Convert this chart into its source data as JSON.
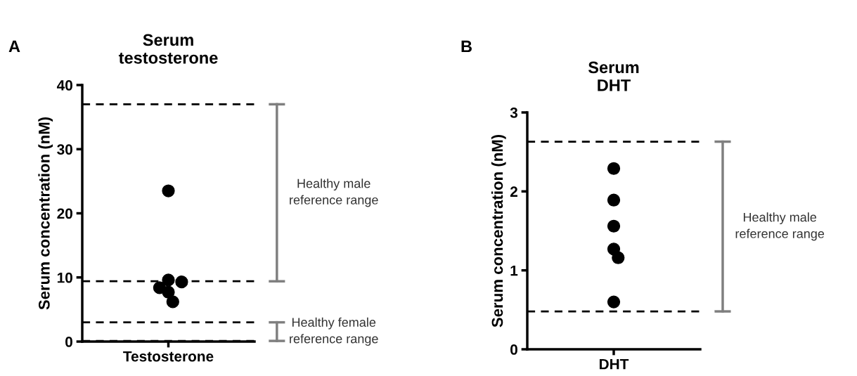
{
  "chart_data": [
    {
      "type": "scatter",
      "title": "Serum\ntestosterone",
      "ylabel": "Serum concentration (nM)",
      "categories": [
        "Testosterone"
      ],
      "series": [
        {
          "color": "#000000",
          "x": [
            "Testosterone",
            "Testosterone",
            "Testosterone",
            "Testosterone",
            "Testosterone",
            "Testosterone"
          ],
          "values": [
            23.5,
            9.6,
            9.3,
            8.4,
            7.7,
            6.2
          ]
        }
      ],
      "ylim": [
        0,
        40
      ],
      "yticks": [
        0,
        10,
        20,
        30,
        40
      ],
      "marker": "circle",
      "ref_lines": [
        {
          "axis": "y",
          "value": 37.0,
          "color": "#000000",
          "line_style": "dashed"
        },
        {
          "axis": "y",
          "value": 9.4,
          "color": "#000000",
          "line_style": "dashed"
        },
        {
          "axis": "y",
          "value": 3.0,
          "color": "#000000",
          "line_style": "dashed"
        },
        {
          "axis": "y",
          "value": 0.1,
          "color": "#000000",
          "line_style": "dashed"
        }
      ],
      "annotations": [
        "A",
        "Healthy male\nreference range",
        "Healthy female\nreference range"
      ]
    },
    {
      "type": "scatter",
      "title": "Serum\nDHT",
      "ylabel": "Serum concentration (nM)",
      "categories": [
        "DHT"
      ],
      "series": [
        {
          "color": "#000000",
          "x": [
            "DHT",
            "DHT",
            "DHT",
            "DHT",
            "DHT",
            "DHT"
          ],
          "values": [
            2.29,
            1.89,
            1.56,
            1.27,
            1.16,
            0.6
          ]
        }
      ],
      "ylim": [
        0,
        3
      ],
      "yticks": [
        0,
        1,
        2,
        3
      ],
      "marker": "circle",
      "ref_lines": [
        {
          "axis": "y",
          "value": 2.63,
          "color": "#000000",
          "line_style": "dashed"
        },
        {
          "axis": "y",
          "value": 0.48,
          "color": "#000000",
          "line_style": "dashed"
        }
      ],
      "annotations": [
        "B",
        "Healthy male\nreference range"
      ]
    }
  ]
}
